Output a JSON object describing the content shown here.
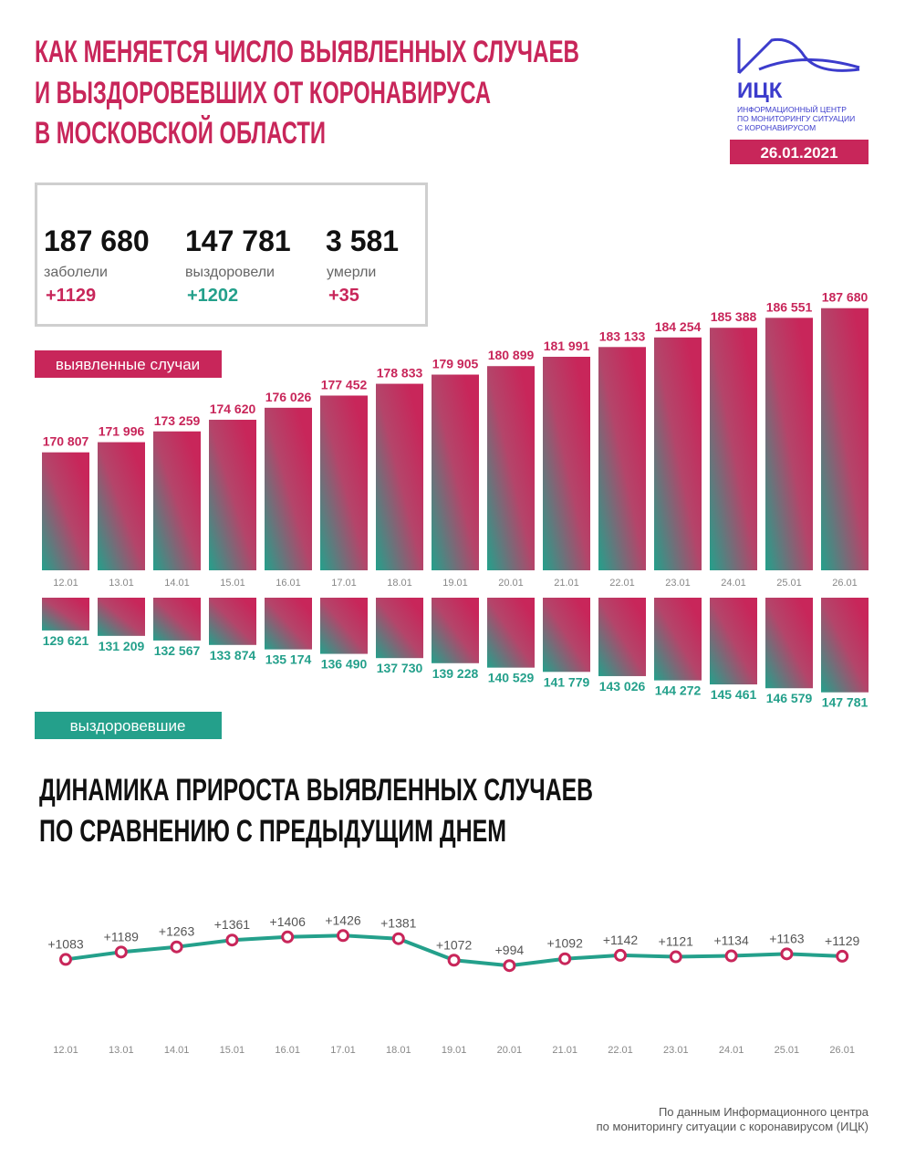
{
  "header": {
    "title": [
      "КАК МЕНЯЕТСЯ ЧИСЛО ВЫЯВЛЕННЫХ СЛУЧАЕВ",
      "И ВЫЗДОРОВЕВШИХ ОТ КОРОНАВИРУСА",
      "В МОСКОВСКОЙ ОБЛАСТИ"
    ]
  },
  "logo": {
    "name": "ИЦК",
    "caption": [
      "ИНФОРМАЦИОННЫЙ ЦЕНТР",
      "ПО МОНИТОРИНГУ СИТУАЦИИ",
      "С КОРОНАВИРУСОМ"
    ],
    "date": "26.01.2021"
  },
  "stats": [
    {
      "value": "187 680",
      "label": "заболели",
      "change": "+1129"
    },
    {
      "value": "147 781",
      "label": "выздоровели",
      "change": "+1202"
    },
    {
      "value": "3 581",
      "label": "умерли",
      "change": "+35"
    }
  ],
  "chart_data": [
    {
      "type": "bar",
      "title": "выявленные случаи",
      "categories": [
        "12.01",
        "13.01",
        "14.01",
        "15.01",
        "16.01",
        "17.01",
        "18.01",
        "19.01",
        "20.01",
        "21.01",
        "22.01",
        "23.01",
        "24.01",
        "25.01",
        "26.01"
      ],
      "values": [
        170807,
        171996,
        173259,
        174620,
        176026,
        177452,
        178833,
        179905,
        180899,
        181991,
        183133,
        184254,
        185388,
        186551,
        187680
      ],
      "value_labels": [
        "170 807",
        "171 996",
        "173 259",
        "174 620",
        "176 026",
        "177 452",
        "178 833",
        "179 905",
        "180 899",
        "181 991",
        "183 133",
        "184 254",
        "185 388",
        "186 551",
        "187 680"
      ],
      "color": "#c8265a",
      "ylim": [
        157000,
        190000
      ]
    },
    {
      "type": "bar",
      "title": "выздоровевшие",
      "values": [
        129621,
        131209,
        132567,
        133874,
        135174,
        136490,
        137730,
        139228,
        140529,
        141779,
        143026,
        144272,
        145461,
        146579,
        147781
      ],
      "value_labels": [
        "129 621",
        "131 209",
        "132 567",
        "133 874",
        "135 174",
        "136 490",
        "137 730",
        "139 228",
        "140 529",
        "141 779",
        "143 026",
        "144 272",
        "145 461",
        "146 579",
        "147 781"
      ],
      "color": "#24a08b",
      "ylim": [
        120000,
        150000
      ]
    },
    {
      "type": "line",
      "title": [
        "ДИНАМИКА ПРИРОСТА ВЫЯВЛЕННЫХ СЛУЧАЕВ",
        "ПО СРАВНЕНИЮ С ПРЕДЫДУЩИМ ДНЕМ"
      ],
      "categories": [
        "12.01",
        "13.01",
        "14.01",
        "15.01",
        "16.01",
        "17.01",
        "18.01",
        "19.01",
        "20.01",
        "21.01",
        "22.01",
        "23.01",
        "24.01",
        "25.01",
        "26.01"
      ],
      "values": [
        1083,
        1189,
        1263,
        1361,
        1406,
        1426,
        1381,
        1072,
        994,
        1092,
        1142,
        1121,
        1134,
        1163,
        1129
      ],
      "value_labels": [
        "+1083",
        "+1189",
        "+1263",
        "+1361",
        "+1406",
        "+1426",
        "+1381",
        "+1072",
        "+994",
        "+1092",
        "+1142",
        "+1121",
        "+1134",
        "+1163",
        "+1129"
      ],
      "color": "#24a08b",
      "marker_color": "#c8265a",
      "ylim": [
        800,
        1600
      ]
    }
  ],
  "footer": [
    "По данным Информационного центра",
    "по мониторингу ситуации с коронавирусом (ИЦК)"
  ]
}
